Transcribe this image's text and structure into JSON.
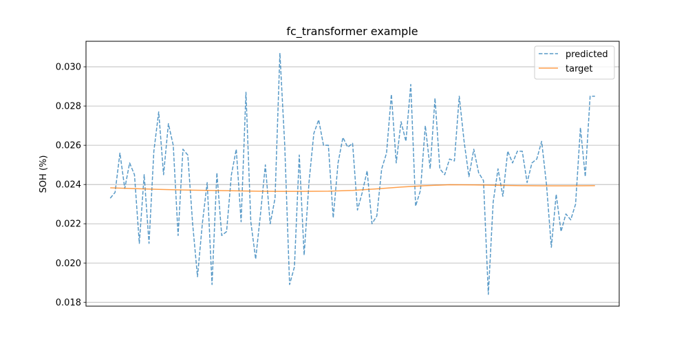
{
  "chart_data": {
    "type": "line",
    "title": "fc_transformer example",
    "xlabel": "",
    "ylabel": "SOH (%)",
    "ylim": [
      0.0178,
      0.0313
    ],
    "xlim": [
      -5,
      105
    ],
    "grid": "y-major",
    "legend_position": "top-right",
    "yticks": [
      {
        "value": 0.018,
        "label": "0.018"
      },
      {
        "value": 0.02,
        "label": "0.020"
      },
      {
        "value": 0.022,
        "label": "0.022"
      },
      {
        "value": 0.024,
        "label": "0.024"
      },
      {
        "value": 0.026,
        "label": "0.026"
      },
      {
        "value": 0.028,
        "label": "0.028"
      },
      {
        "value": 0.03,
        "label": "0.030"
      }
    ],
    "series": [
      {
        "name": "predicted",
        "color": "#1f77b4",
        "style": "dashed",
        "x": [
          0,
          1,
          2,
          3,
          4,
          5,
          6,
          7,
          8,
          9,
          10,
          11,
          12,
          13,
          14,
          15,
          16,
          17,
          18,
          19,
          20,
          21,
          22,
          23,
          24,
          25,
          26,
          27,
          28,
          29,
          30,
          31,
          32,
          33,
          34,
          35,
          36,
          37,
          38,
          39,
          40,
          41,
          42,
          43,
          44,
          45,
          46,
          47,
          48,
          49,
          50,
          51,
          52,
          53,
          54,
          55,
          56,
          57,
          58,
          59,
          60,
          61,
          62,
          63,
          64,
          65,
          66,
          67,
          68,
          69,
          70,
          71,
          72,
          73,
          74,
          75,
          76,
          77,
          78,
          79,
          80,
          81,
          82,
          83,
          84,
          85,
          86,
          87,
          88,
          89,
          90,
          91,
          92,
          93,
          94,
          95,
          96,
          97,
          98,
          99,
          100
        ],
        "y": [
          0.0233,
          0.0236,
          0.0256,
          0.0238,
          0.0251,
          0.0245,
          0.021,
          0.0245,
          0.021,
          0.0257,
          0.0277,
          0.0245,
          0.0271,
          0.026,
          0.0214,
          0.0258,
          0.0255,
          0.022,
          0.0193,
          0.022,
          0.0241,
          0.0189,
          0.0246,
          0.0214,
          0.0216,
          0.0245,
          0.0258,
          0.0221,
          0.0287,
          0.0221,
          0.0202,
          0.0225,
          0.025,
          0.022,
          0.0233,
          0.0307,
          0.026,
          0.0189,
          0.0198,
          0.0255,
          0.0204,
          0.0241,
          0.0266,
          0.0273,
          0.026,
          0.026,
          0.0223,
          0.0251,
          0.0264,
          0.0259,
          0.0261,
          0.0227,
          0.0236,
          0.0247,
          0.022,
          0.0224,
          0.0248,
          0.0256,
          0.0286,
          0.0251,
          0.0272,
          0.0262,
          0.0291,
          0.0229,
          0.0237,
          0.027,
          0.0248,
          0.0284,
          0.0248,
          0.0245,
          0.0253,
          0.0252,
          0.0285,
          0.0262,
          0.0244,
          0.0258,
          0.0246,
          0.0242,
          0.0184,
          0.0231,
          0.0248,
          0.0234,
          0.0257,
          0.0251,
          0.0257,
          0.0257,
          0.0241,
          0.0251,
          0.0253,
          0.0262,
          0.024,
          0.0208,
          0.0235,
          0.0216,
          0.0225,
          0.0222,
          0.023,
          0.0269,
          0.0244,
          0.0285,
          0.0285
        ]
      },
      {
        "name": "target",
        "color": "#ff7f0e",
        "style": "solid",
        "x": [
          0,
          5,
          10,
          15,
          20,
          25,
          30,
          35,
          40,
          45,
          50,
          55,
          60,
          65,
          70,
          75,
          80,
          85,
          90,
          95,
          100
        ],
        "y": [
          0.02383,
          0.02379,
          0.02375,
          0.02372,
          0.0237,
          0.02368,
          0.02366,
          0.02365,
          0.02365,
          0.02366,
          0.0237,
          0.02378,
          0.02387,
          0.02394,
          0.02399,
          0.02398,
          0.02396,
          0.02394,
          0.02393,
          0.02393,
          0.02394
        ]
      }
    ]
  }
}
